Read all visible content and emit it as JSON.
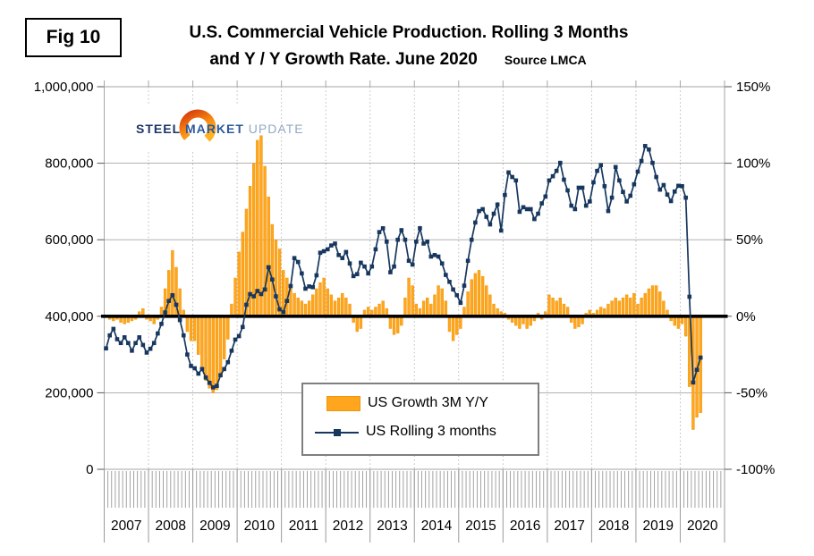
{
  "figure": {
    "fig_label": "Fig 10",
    "title_line1": "U.S. Commercial Vehicle Production. Rolling 3 Months",
    "title_line2": "and Y / Y Growth Rate. June 2020",
    "source": "Source LMCA"
  },
  "logo": {
    "word1": "STEEL",
    "word2": "MARKET",
    "word3": "UPDATE"
  },
  "legend": {
    "bar_label": "US Growth 3M Y/Y",
    "line_label": "US Rolling 3 months"
  },
  "colors": {
    "bar_fill": "#ffa51e",
    "bar_edge": "#ee9709",
    "line": "#17375e",
    "grid": "#a6a6a6",
    "year_grid": "#b4b4b4",
    "zero_line": "#000000",
    "tick": "#555555"
  },
  "chart_data": {
    "type": "combo",
    "x_start": "2007-01",
    "x_end": "2020-06",
    "x_tick_labels": [
      "2007",
      "2008",
      "2009",
      "2010",
      "2011",
      "2012",
      "2013",
      "2014",
      "2015",
      "2016",
      "2017",
      "2018",
      "2019",
      "2020"
    ],
    "left_axis": {
      "min": 0,
      "max": 1000000,
      "step": 200000,
      "tick_labels": [
        "1,000,000",
        "800,000",
        "600,000",
        "400,000",
        "200,000",
        "0"
      ]
    },
    "right_axis": {
      "min": -100,
      "max": 150,
      "step": 50,
      "tick_labels": [
        "150%",
        "100%",
        "50%",
        "0%",
        "-50%",
        "-100%"
      ]
    },
    "zero_line": {
      "left_value": 400000,
      "right_value": 0
    },
    "grid": "on",
    "legend_position": "lower-center",
    "series": [
      {
        "name": "US Growth 3M Y/Y",
        "type": "bar",
        "axis": "right",
        "unit": "%",
        "values": [
          0,
          -2,
          -3,
          -2,
          -4,
          -5,
          -4,
          -3,
          -2,
          3,
          5,
          -2,
          -3,
          -5,
          -2,
          6,
          18,
          30,
          43,
          32,
          18,
          4,
          -10,
          -16,
          -16,
          -25,
          -34,
          -42,
          -47,
          -50,
          -48,
          -40,
          -28,
          -15,
          8,
          25,
          42,
          55,
          70,
          85,
          100,
          115,
          118,
          98,
          78,
          60,
          50,
          44,
          30,
          25,
          20,
          15,
          12,
          10,
          8,
          10,
          14,
          18,
          22,
          25,
          18,
          14,
          10,
          12,
          15,
          12,
          8,
          -4,
          -10,
          -8,
          4,
          6,
          4,
          6,
          8,
          10,
          5,
          -8,
          -12,
          -11,
          -6,
          12,
          25,
          20,
          8,
          5,
          10,
          12,
          8,
          14,
          20,
          18,
          10,
          -10,
          -16,
          -12,
          -8,
          6,
          16,
          24,
          28,
          30,
          26,
          20,
          14,
          8,
          5,
          3,
          2,
          -2,
          -4,
          -6,
          -8,
          -5,
          -8,
          -6,
          -3,
          2,
          -2,
          3,
          14,
          12,
          10,
          12,
          8,
          6,
          -4,
          -8,
          -7,
          -5,
          2,
          4,
          2,
          4,
          6,
          5,
          8,
          10,
          12,
          10,
          12,
          14,
          12,
          15,
          8,
          12,
          15,
          18,
          20,
          20,
          16,
          10,
          4,
          -3,
          -6,
          -8,
          -5,
          -13,
          -46,
          -74,
          -66,
          -63
        ]
      },
      {
        "name": "US Rolling 3 months",
        "type": "line",
        "axis": "left",
        "unit": "vehicles",
        "values": [
          316000,
          350000,
          367000,
          340000,
          330000,
          345000,
          330000,
          310000,
          330000,
          345000,
          325000,
          305000,
          315000,
          330000,
          355000,
          380000,
          410000,
          440000,
          455000,
          430000,
          390000,
          350000,
          300000,
          270000,
          264000,
          250000,
          262000,
          240000,
          226000,
          214000,
          218000,
          246000,
          262000,
          280000,
          310000,
          339000,
          348000,
          372000,
          430000,
          458000,
          452000,
          466000,
          458000,
          470000,
          528000,
          496000,
          452000,
          418000,
          411000,
          440000,
          479000,
          552000,
          542000,
          512000,
          472000,
          478000,
          476000,
          507000,
          566000,
          570000,
          575000,
          585000,
          590000,
          560000,
          552000,
          568000,
          538000,
          505000,
          510000,
          540000,
          530000,
          512000,
          530000,
          575000,
          620000,
          630000,
          595000,
          515000,
          530000,
          600000,
          625000,
          600000,
          545000,
          535000,
          595000,
          630000,
          590000,
          595000,
          556000,
          560000,
          556000,
          538000,
          508000,
          490000,
          470000,
          455000,
          435000,
          480000,
          545000,
          600000,
          645000,
          675000,
          680000,
          660000,
          640000,
          668000,
          692000,
          624000,
          717000,
          776000,
          764000,
          755000,
          673000,
          685000,
          680000,
          680000,
          654000,
          668000,
          695000,
          713000,
          755000,
          766000,
          780000,
          801000,
          757000,
          729000,
          689000,
          680000,
          736000,
          736000,
          689000,
          700000,
          750000,
          780000,
          795000,
          740000,
          675000,
          710000,
          790000,
          755000,
          725000,
          700000,
          715000,
          745000,
          778000,
          806000,
          845000,
          836000,
          801000,
          764000,
          731000,
          743000,
          718000,
          701000,
          726000,
          741000,
          740000,
          710000,
          451000,
          227000,
          260000,
          292000
        ]
      }
    ]
  }
}
